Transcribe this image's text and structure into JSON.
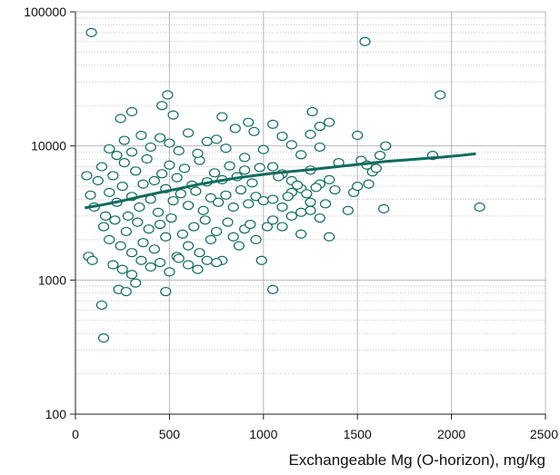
{
  "colors": {
    "accent": "#0d6b5e",
    "grid_major": "#b8b8b8",
    "grid_minor": "#c8c8c8",
    "axis": "#222222",
    "background": "#ffffff"
  },
  "chart_data": {
    "type": "scatter",
    "title": "",
    "xlabel": "Exchangeable Mg (O-horizon), mg/kg",
    "ylabel": "",
    "xlim": [
      0,
      2500
    ],
    "ylim": [
      100,
      100000
    ],
    "y_scale": "log",
    "x_ticks": [
      0,
      500,
      1000,
      1500,
      2000,
      2500
    ],
    "x_tick_labels": [
      "0",
      "500",
      "1000",
      "1500",
      "2000",
      "2500"
    ],
    "y_ticks": [
      100,
      1000,
      10000,
      100000
    ],
    "y_tick_labels": [
      "100",
      "1000",
      "10000",
      "100000"
    ],
    "grid": true,
    "marker": "open-circle",
    "series": [
      {
        "kind": "points",
        "points": [
          [
            85,
            70000
          ],
          [
            1540,
            60000
          ],
          [
            1940,
            24000
          ],
          [
            490,
            24000
          ],
          [
            460,
            20000
          ],
          [
            520,
            17000
          ],
          [
            240,
            16000
          ],
          [
            780,
            16500
          ],
          [
            1260,
            18000
          ],
          [
            1050,
            14500
          ],
          [
            920,
            15000
          ],
          [
            300,
            18000
          ],
          [
            60,
            6000
          ],
          [
            80,
            4300
          ],
          [
            100,
            3500
          ],
          [
            120,
            5500
          ],
          [
            140,
            7000
          ],
          [
            160,
            3000
          ],
          [
            180,
            4500
          ],
          [
            200,
            6000
          ],
          [
            220,
            3800
          ],
          [
            250,
            5000
          ],
          [
            260,
            7500
          ],
          [
            280,
            3000
          ],
          [
            300,
            4200
          ],
          [
            320,
            6500
          ],
          [
            340,
            3500
          ],
          [
            360,
            5200
          ],
          [
            380,
            8000
          ],
          [
            400,
            4000
          ],
          [
            420,
            5500
          ],
          [
            440,
            3200
          ],
          [
            460,
            6200
          ],
          [
            480,
            4800
          ],
          [
            500,
            7200
          ],
          [
            520,
            3900
          ],
          [
            540,
            5800
          ],
          [
            560,
            4400
          ],
          [
            580,
            6800
          ],
          [
            600,
            3600
          ],
          [
            620,
            5100
          ],
          [
            640,
            4600
          ],
          [
            660,
            7800
          ],
          [
            680,
            3300
          ],
          [
            700,
            5400
          ],
          [
            720,
            4100
          ],
          [
            740,
            6300
          ],
          [
            760,
            3800
          ],
          [
            780,
            5600
          ],
          [
            800,
            4300
          ],
          [
            820,
            7100
          ],
          [
            840,
            3500
          ],
          [
            860,
            5900
          ],
          [
            880,
            4700
          ],
          [
            900,
            6600
          ],
          [
            920,
            3700
          ],
          [
            940,
            5300
          ],
          [
            960,
            4200
          ],
          [
            980,
            6900
          ],
          [
            1000,
            3900
          ],
          [
            150,
            2500
          ],
          [
            180,
            2000
          ],
          [
            210,
            2800
          ],
          [
            240,
            1800
          ],
          [
            270,
            2300
          ],
          [
            300,
            1600
          ],
          [
            330,
            2700
          ],
          [
            360,
            1900
          ],
          [
            390,
            2400
          ],
          [
            420,
            1700
          ],
          [
            450,
            2600
          ],
          [
            480,
            2100
          ],
          [
            510,
            2900
          ],
          [
            540,
            1500
          ],
          [
            570,
            2200
          ],
          [
            600,
            1800
          ],
          [
            630,
            2500
          ],
          [
            660,
            1600
          ],
          [
            690,
            2800
          ],
          [
            720,
            2000
          ],
          [
            750,
            2300
          ],
          [
            780,
            1400
          ],
          [
            810,
            2700
          ],
          [
            840,
            2100
          ],
          [
            870,
            1800
          ],
          [
            900,
            2400
          ],
          [
            930,
            2600
          ],
          [
            960,
            2000
          ],
          [
            990,
            1400
          ],
          [
            1020,
            2500
          ],
          [
            200,
            1300
          ],
          [
            250,
            1200
          ],
          [
            300,
            1100
          ],
          [
            350,
            1400
          ],
          [
            400,
            1250
          ],
          [
            450,
            1350
          ],
          [
            500,
            1150
          ],
          [
            550,
            1450
          ],
          [
            600,
            1300
          ],
          [
            650,
            1200
          ],
          [
            700,
            1400
          ],
          [
            750,
            1350
          ],
          [
            230,
            850
          ],
          [
            270,
            820
          ],
          [
            320,
            950
          ],
          [
            480,
            820
          ],
          [
            1050,
            850
          ],
          [
            140,
            650
          ],
          [
            150,
            370
          ],
          [
            70,
            1500
          ],
          [
            90,
            1400
          ],
          [
            180,
            9500
          ],
          [
            220,
            8500
          ],
          [
            260,
            11000
          ],
          [
            300,
            9000
          ],
          [
            350,
            12000
          ],
          [
            400,
            9800
          ],
          [
            450,
            11500
          ],
          [
            500,
            10500
          ],
          [
            550,
            9200
          ],
          [
            600,
            12500
          ],
          [
            650,
            8800
          ],
          [
            700,
            10800
          ],
          [
            750,
            11200
          ],
          [
            800,
            9600
          ],
          [
            850,
            13500
          ],
          [
            900,
            8200
          ],
          [
            950,
            12800
          ],
          [
            1000,
            9400
          ],
          [
            1100,
            11800
          ],
          [
            1150,
            10200
          ],
          [
            1200,
            8600
          ],
          [
            1250,
            12200
          ],
          [
            1300,
            9800
          ],
          [
            1050,
            7000
          ],
          [
            1100,
            6200
          ],
          [
            1150,
            5500
          ],
          [
            1200,
            4800
          ],
          [
            1250,
            6600
          ],
          [
            1300,
            5200
          ],
          [
            1050,
            4000
          ],
          [
            1100,
            3500
          ],
          [
            1150,
            4500
          ],
          [
            1200,
            3200
          ],
          [
            1250,
            3800
          ],
          [
            1300,
            2900
          ],
          [
            1050,
            2800
          ],
          [
            1100,
            2500
          ],
          [
            1150,
            3000
          ],
          [
            1200,
            2200
          ],
          [
            1250,
            3300
          ],
          [
            1350,
            2100
          ],
          [
            1080,
            5900
          ],
          [
            1130,
            4200
          ],
          [
            1180,
            5100
          ],
          [
            1230,
            4400
          ],
          [
            1280,
            4900
          ],
          [
            1330,
            3700
          ],
          [
            1350,
            5600
          ],
          [
            1380,
            4700
          ],
          [
            1400,
            7500
          ],
          [
            1450,
            3300
          ],
          [
            1480,
            4500
          ],
          [
            1500,
            5000
          ],
          [
            1520,
            7800
          ],
          [
            1550,
            7200
          ],
          [
            1580,
            6400
          ],
          [
            1600,
            6800
          ],
          [
            1620,
            8500
          ],
          [
            1650,
            10000
          ],
          [
            1640,
            3400
          ],
          [
            1560,
            5200
          ],
          [
            1500,
            12000
          ],
          [
            1350,
            15000
          ],
          [
            1300,
            14000
          ],
          [
            2150,
            3500
          ],
          [
            1900,
            8500
          ]
        ]
      },
      {
        "kind": "trend",
        "points": [
          [
            50,
            3450
          ],
          [
            150,
            3650
          ],
          [
            250,
            3900
          ],
          [
            350,
            4200
          ],
          [
            450,
            4500
          ],
          [
            550,
            4800
          ],
          [
            650,
            5150
          ],
          [
            750,
            5450
          ],
          [
            850,
            5750
          ],
          [
            950,
            6000
          ],
          [
            1050,
            6250
          ],
          [
            1150,
            6450
          ],
          [
            1250,
            6650
          ],
          [
            1350,
            6900
          ],
          [
            1450,
            7150
          ],
          [
            1550,
            7400
          ],
          [
            1650,
            7650
          ],
          [
            1750,
            7850
          ],
          [
            1850,
            8050
          ],
          [
            1950,
            8250
          ],
          [
            2050,
            8500
          ],
          [
            2130,
            8750
          ]
        ]
      }
    ]
  }
}
